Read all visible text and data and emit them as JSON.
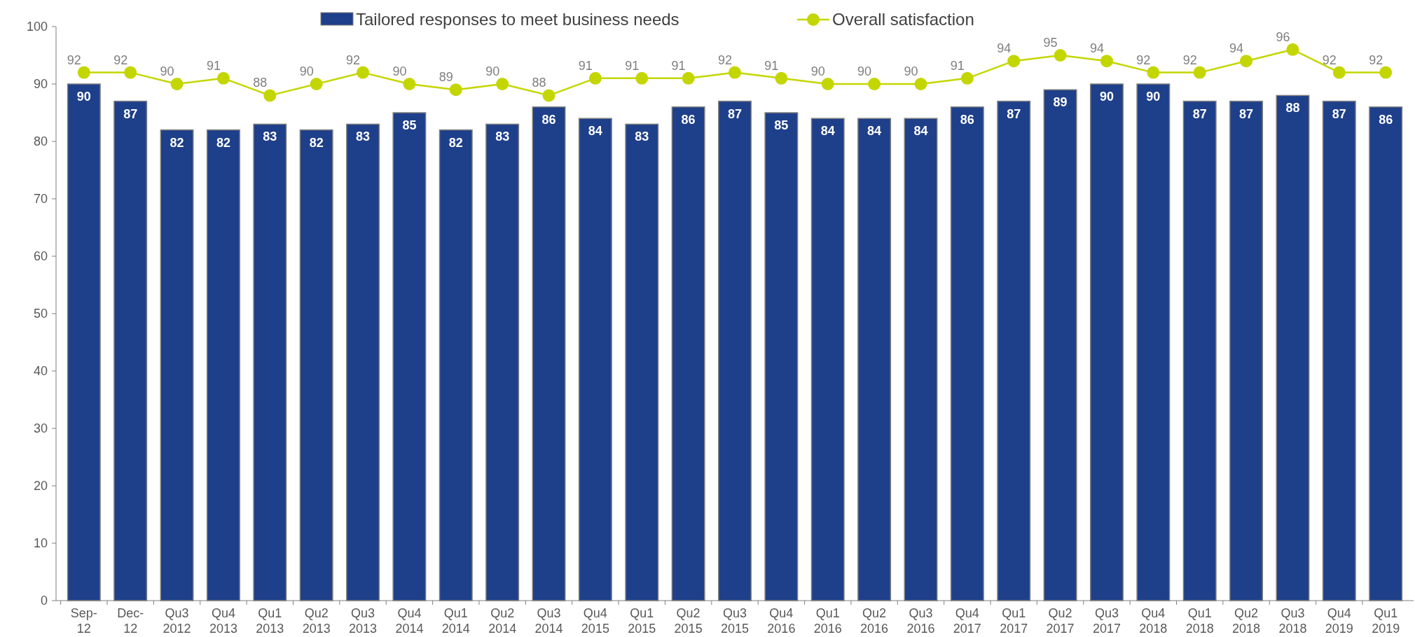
{
  "chart_data": {
    "type": "bar",
    "categories": [
      "Sep-\n12",
      "Dec-\n12",
      "Qu3\n2012",
      "Qu4\n2013",
      "Qu1\n2013",
      "Qu2\n2013",
      "Qu3\n2013",
      "Qu4\n2014",
      "Qu1\n2014",
      "Qu2\n2014",
      "Qu3\n2014",
      "Qu4\n2015",
      "Qu1\n2015",
      "Qu2\n2015",
      "Qu3\n2015",
      "Qu4\n2016",
      "Qu1\n2016",
      "Qu2\n2016",
      "Qu3\n2016",
      "Qu4\n2017",
      "Qu1\n2017",
      "Qu2\n2017",
      "Qu3\n2017",
      "Qu4\n2018",
      "Qu1\n2018",
      "Qu2\n2018",
      "Qu3\n2018",
      "Qu4\n2019",
      "Qu1\n2019"
    ],
    "series": [
      {
        "name": "Tailored responses to meet business needs",
        "color": "#1e3f8a",
        "values": [
          90,
          87,
          82,
          82,
          83,
          82,
          83,
          85,
          82,
          83,
          86,
          84,
          83,
          86,
          87,
          85,
          84,
          84,
          84,
          86,
          87,
          89,
          90,
          90,
          87,
          87,
          88,
          87,
          86
        ]
      },
      {
        "name": "Overall satisfaction",
        "type": "line",
        "color": "#c4d600",
        "values": [
          92,
          92,
          90,
          91,
          88,
          90,
          92,
          90,
          89,
          90,
          88,
          91,
          91,
          91,
          92,
          91,
          90,
          90,
          90,
          91,
          94,
          95,
          94,
          92,
          92,
          94,
          96,
          92,
          92
        ]
      }
    ],
    "ylim": [
      0,
      100
    ],
    "yticks": [
      0,
      10,
      20,
      30,
      40,
      50,
      60,
      70,
      80,
      90,
      100
    ],
    "grid": false,
    "legend": "top",
    "marker": "circle",
    "data_labels": true
  }
}
